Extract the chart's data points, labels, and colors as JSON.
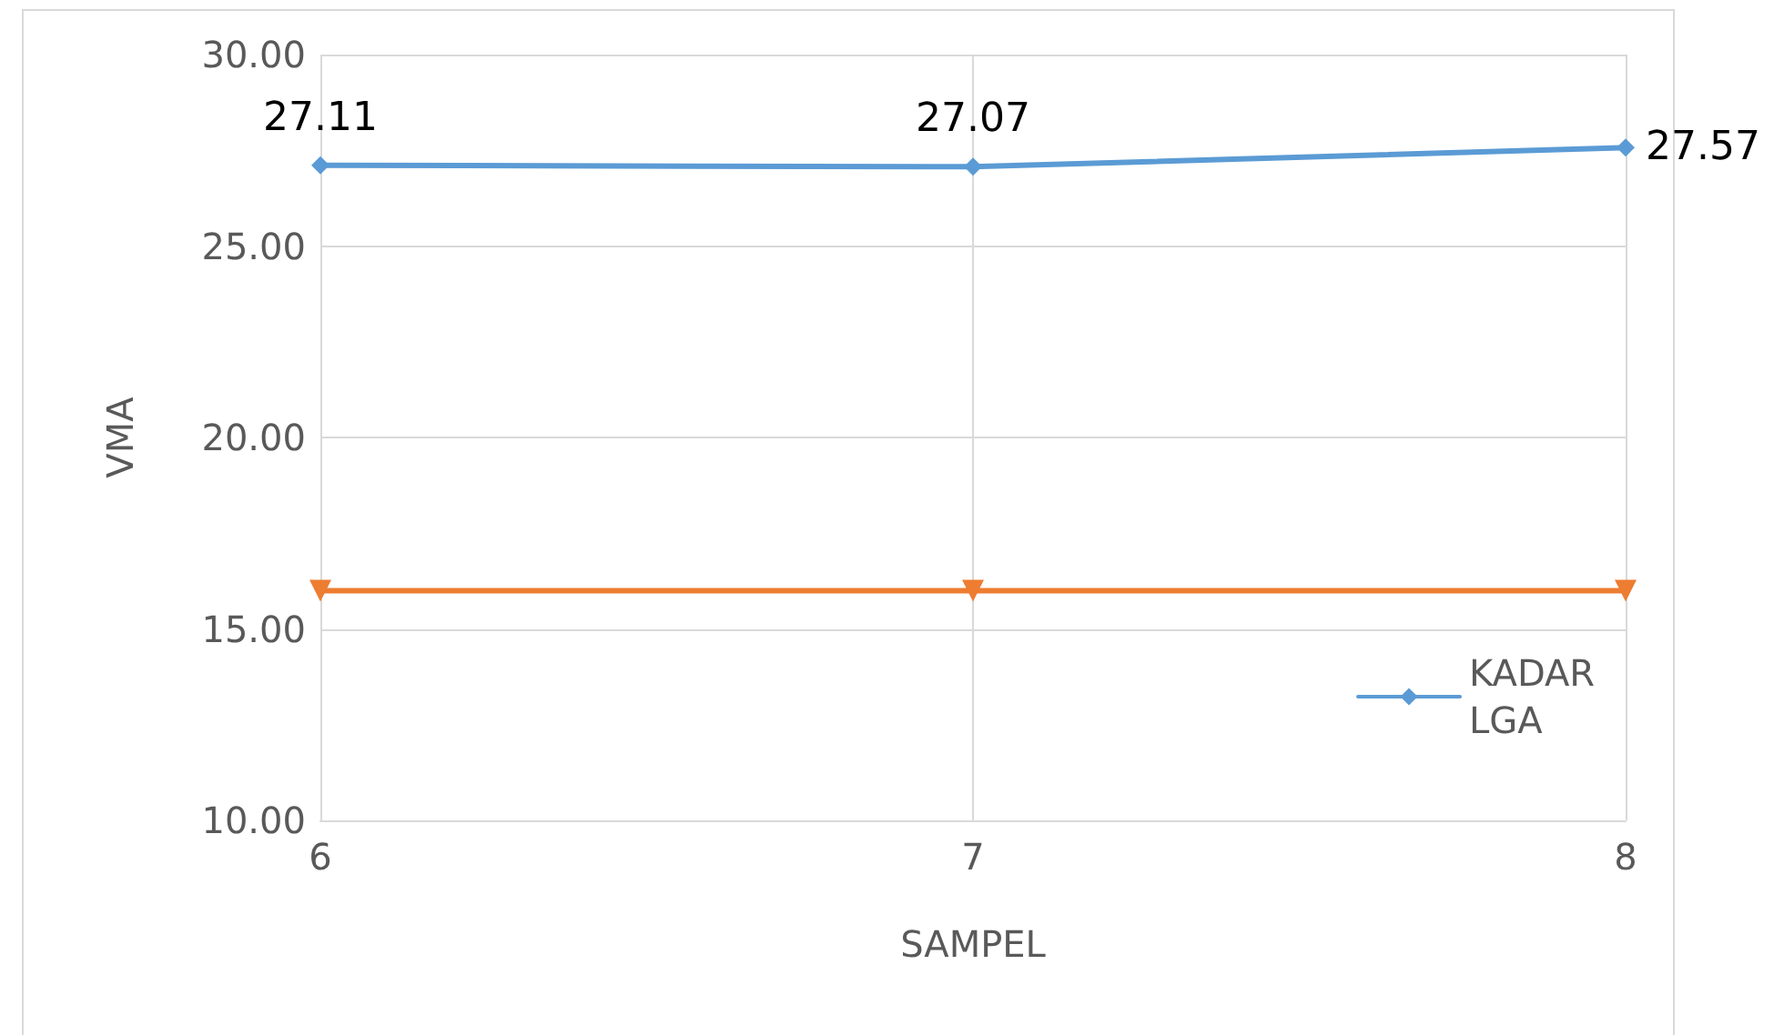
{
  "chart_data": {
    "type": "line",
    "xlabel": "SAMPEL",
    "ylabel": "VMA",
    "x": [
      6,
      7,
      8
    ],
    "series": [
      {
        "name": "KADAR LGA",
        "color": "#5b9bd5",
        "values": [
          27.11,
          27.07,
          27.57
        ],
        "marker": "diamond",
        "data_labels": true
      },
      {
        "color": "#ed7d31",
        "values": [
          16,
          16,
          16
        ],
        "marker": "triangle_down"
      }
    ],
    "xlim": [
      6,
      8
    ],
    "xticks": [
      6,
      7,
      8
    ],
    "ylim": [
      10,
      30
    ],
    "yticks": [
      {
        "value": 10,
        "label": "10.00"
      },
      {
        "value": 15,
        "label": "15.00"
      },
      {
        "value": 20,
        "label": "20.00"
      },
      {
        "value": 25,
        "label": "25.00"
      },
      {
        "value": 30,
        "label": "30.00"
      }
    ],
    "grid": true,
    "legend": "right",
    "line_style": "solid"
  }
}
